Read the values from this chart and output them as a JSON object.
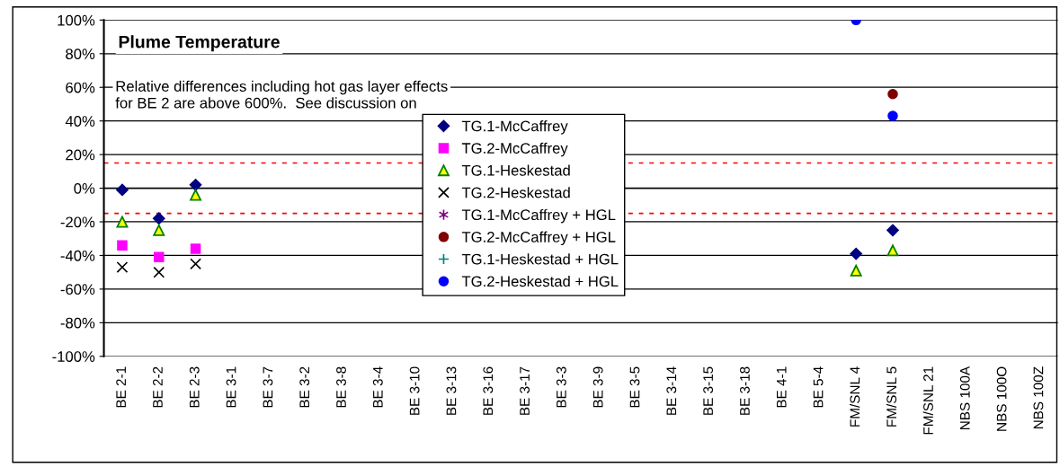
{
  "chart_data": {
    "type": "scatter",
    "title": "Plume Temperature",
    "categories": [
      "BE 2-1",
      "BE 2-2",
      "BE 2-3",
      "BE 3-1",
      "BE 3-7",
      "BE 3-2",
      "BE 3-8",
      "BE 3-4",
      "BE 3-10",
      "BE 3-13",
      "BE 3-16",
      "BE 3-17",
      "BE 3-3",
      "BE 3-9",
      "BE 3-5",
      "BE 3-14",
      "BE 3-15",
      "BE 3-18",
      "BE 4-1",
      "BE 5-4",
      "FM/SNL 4",
      "FM/SNL 5",
      "FM/SNL 21",
      "NBS 100A",
      "NBS 100O",
      "NBS 100Z"
    ],
    "series": [
      {
        "name": "TG.1-McCaffrey",
        "color": "#000080",
        "marker": "diamond",
        "values": [
          -1,
          -18,
          2,
          null,
          null,
          null,
          null,
          null,
          null,
          null,
          null,
          null,
          null,
          null,
          null,
          null,
          null,
          null,
          null,
          null,
          -39,
          -25,
          null,
          null,
          null,
          null
        ]
      },
      {
        "name": "TG.2-McCaffrey",
        "color": "#ff00ff",
        "marker": "square",
        "values": [
          -34,
          -41,
          -36,
          null,
          null,
          null,
          null,
          null,
          null,
          null,
          null,
          null,
          null,
          null,
          null,
          null,
          null,
          null,
          null,
          null,
          null,
          null,
          null,
          null,
          null,
          null
        ]
      },
      {
        "name": "TG.1-Heskestad",
        "color": "#ffff00",
        "marker": "triangle",
        "values": [
          -20,
          -25,
          -4,
          null,
          null,
          null,
          null,
          null,
          null,
          null,
          null,
          null,
          null,
          null,
          null,
          null,
          null,
          null,
          null,
          null,
          -49,
          -37,
          null,
          null,
          null,
          null
        ]
      },
      {
        "name": "TG.2-Heskestad",
        "color": "#000000",
        "marker": "cross",
        "values": [
          -47,
          -50,
          -45,
          null,
          null,
          null,
          null,
          null,
          null,
          null,
          null,
          null,
          null,
          null,
          null,
          null,
          null,
          null,
          null,
          null,
          null,
          null,
          null,
          null,
          null,
          null
        ]
      },
      {
        "name": "TG.1-McCaffrey + HGL",
        "color": "#800080",
        "marker": "star",
        "values": [
          null,
          null,
          null,
          null,
          null,
          null,
          null,
          null,
          null,
          null,
          null,
          null,
          null,
          null,
          null,
          null,
          null,
          null,
          null,
          null,
          null,
          null,
          null,
          null,
          null,
          null
        ]
      },
      {
        "name": "TG.2-McCaffrey + HGL",
        "color": "#800000",
        "marker": "circle",
        "values": [
          null,
          null,
          null,
          null,
          null,
          null,
          null,
          null,
          null,
          null,
          null,
          null,
          null,
          null,
          null,
          null,
          null,
          null,
          null,
          null,
          null,
          56,
          null,
          null,
          null,
          null
        ]
      },
      {
        "name": "TG.1-Heskestad + HGL",
        "color": "#008080",
        "marker": "plus",
        "values": [
          null,
          null,
          null,
          null,
          null,
          null,
          null,
          null,
          null,
          null,
          null,
          null,
          null,
          null,
          null,
          null,
          null,
          null,
          null,
          null,
          null,
          null,
          null,
          null,
          null,
          null
        ]
      },
      {
        "name": "TG.2-Heskestad + HGL",
        "color": "#0000ff",
        "marker": "circle",
        "values": [
          null,
          null,
          null,
          null,
          null,
          null,
          null,
          null,
          null,
          null,
          null,
          null,
          null,
          null,
          null,
          null,
          null,
          null,
          null,
          null,
          100,
          43,
          null,
          null,
          null,
          null
        ]
      }
    ],
    "ylim": [
      -100,
      100
    ],
    "yticks": [
      {
        "value": -100,
        "label": "-100%"
      },
      {
        "value": -80,
        "label": "-80%"
      },
      {
        "value": -60,
        "label": "-60%"
      },
      {
        "value": -40,
        "label": "-40%"
      },
      {
        "value": -20,
        "label": "-20%"
      },
      {
        "value": 0,
        "label": "0%"
      },
      {
        "value": 20,
        "label": "20%"
      },
      {
        "value": 40,
        "label": "40%"
      },
      {
        "value": 60,
        "label": "60%"
      },
      {
        "value": 80,
        "label": "80%"
      },
      {
        "value": 100,
        "label": "100%"
      }
    ],
    "ref_lines": [
      {
        "axis": "y",
        "value": 15,
        "color": "#ff0000",
        "line_style": "dashed"
      },
      {
        "axis": "y",
        "value": -15,
        "color": "#ff0000",
        "line_style": "dashed"
      }
    ],
    "annotations": [
      "Relative differences including hot gas layer effects for BE 2 are above 600%.  See discussion on"
    ],
    "grid": "y",
    "legend": "center"
  }
}
